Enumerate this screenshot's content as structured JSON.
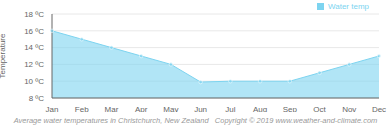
{
  "chart_data": {
    "type": "area",
    "categories": [
      "Jan",
      "Feb",
      "Mar",
      "Apr",
      "May",
      "Jun",
      "Jul",
      "Aug",
      "Sep",
      "Oct",
      "Nov",
      "Dec"
    ],
    "series": [
      {
        "name": "Water temp",
        "color": "#7dd4f0",
        "values": [
          16.0,
          15.0,
          14.0,
          13.0,
          12.0,
          9.9,
          10.0,
          10.0,
          10.0,
          11.0,
          12.0,
          13.0
        ]
      }
    ],
    "ylabel": "Temperature",
    "caption": "Average water temperatures in Christchurch, New Zealand   Copyright © 2019 www.weather-and-climate.com",
    "ylim": [
      8,
      18
    ],
    "yticks": [
      {
        "value": 8,
        "label": "8 ºC"
      },
      {
        "value": 10,
        "label": "10 ºC"
      },
      {
        "value": 12,
        "label": "12 ºC"
      },
      {
        "value": 14,
        "label": "14 ºC"
      },
      {
        "value": 16,
        "label": "16 ºC"
      },
      {
        "value": 18,
        "label": "18 ºC"
      }
    ],
    "grid": true,
    "legend": "upper right"
  }
}
